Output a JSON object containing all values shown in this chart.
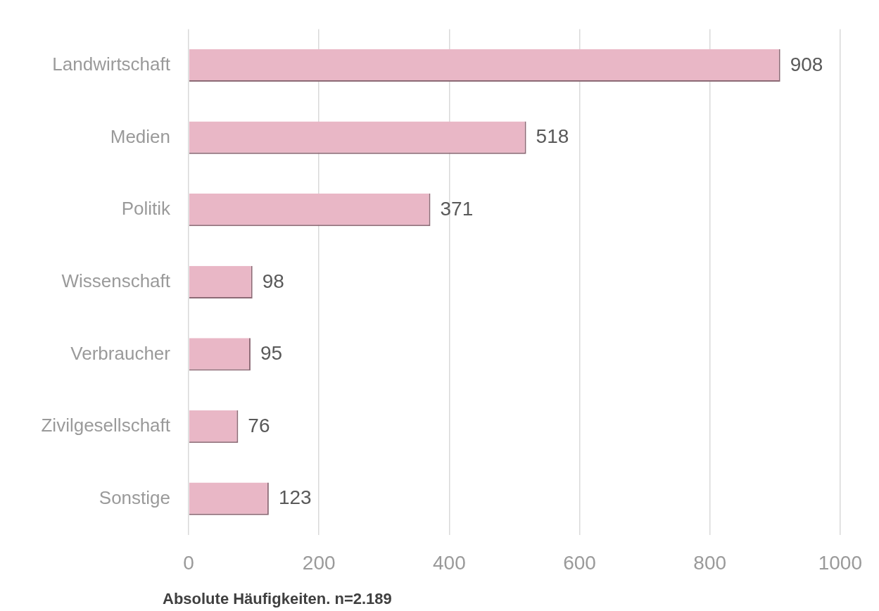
{
  "chart_data": {
    "type": "bar",
    "orientation": "horizontal",
    "categories": [
      "Landwirtschaft",
      "Medien",
      "Politik",
      "Wissenschaft",
      "Verbraucher",
      "Zivilgesellschaft",
      "Sonstige"
    ],
    "values": [
      908,
      518,
      371,
      98,
      95,
      76,
      123
    ],
    "color": "#e9b7c6",
    "xlim": [
      0,
      1000
    ],
    "xticks": [
      0,
      200,
      400,
      600,
      800,
      1000
    ],
    "grid": "x",
    "data_labels": true,
    "legend": false,
    "annotations": [
      "Absolute Häufigkeiten. n=2.189"
    ]
  }
}
